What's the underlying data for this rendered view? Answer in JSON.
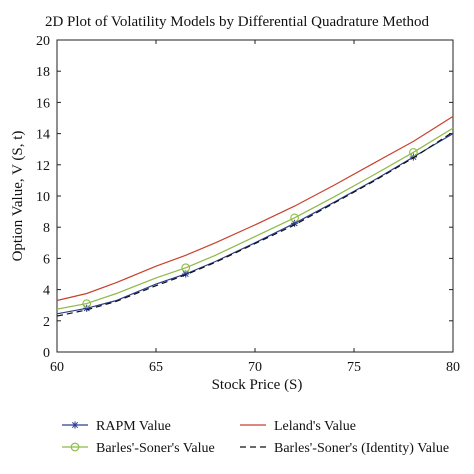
{
  "chart_data": {
    "type": "line",
    "title": "2D Plot of Volatility Models by Differential Quadrature Method",
    "xlabel": "Stock Price (S)",
    "ylabel": "Option Value, V (S, t)",
    "xlim": [
      60,
      80
    ],
    "ylim": [
      0,
      20
    ],
    "xticks": [
      60,
      65,
      70,
      75,
      80
    ],
    "yticks": [
      0,
      2,
      4,
      6,
      8,
      10,
      12,
      14,
      16,
      18,
      20
    ],
    "grid": false,
    "legend_position": "bottom, outside plot, two columns",
    "series": [
      {
        "name": "RAPM Value",
        "color": "#2c3e8f",
        "style": "solid",
        "marker": "asterisk",
        "x": [
          60,
          61.5,
          63,
          65,
          66.5,
          68,
          70,
          72,
          74,
          76,
          78,
          80
        ],
        "y": [
          2.45,
          2.8,
          3.3,
          4.35,
          5.0,
          5.8,
          7.0,
          8.25,
          9.6,
          11.0,
          12.5,
          14.0
        ],
        "marker_x": [
          61.5,
          66.5,
          72,
          78
        ]
      },
      {
        "name": "Leland's Value",
        "color": "#c8412d",
        "style": "solid",
        "marker": "none",
        "x": [
          60,
          61.5,
          63,
          65,
          66.5,
          68,
          70,
          72,
          74,
          76,
          78,
          80
        ],
        "y": [
          3.3,
          3.75,
          4.45,
          5.5,
          6.2,
          7.0,
          8.15,
          9.35,
          10.7,
          12.1,
          13.5,
          15.1
        ]
      },
      {
        "name": "Barles'-Soner's Value",
        "color": "#8dba45",
        "style": "solid",
        "marker": "circle",
        "x": [
          60,
          61.5,
          63,
          65,
          66.5,
          68,
          70,
          72,
          74,
          76,
          78,
          80
        ],
        "y": [
          2.75,
          3.1,
          3.75,
          4.75,
          5.4,
          6.2,
          7.4,
          8.6,
          9.95,
          11.35,
          12.8,
          14.35
        ],
        "marker_x": [
          61.5,
          66.5,
          72,
          78
        ]
      },
      {
        "name": "Barles'-Soner's (Identity) Value",
        "color": "#111111",
        "style": "dashed",
        "marker": "none",
        "x": [
          60,
          61.5,
          63,
          65,
          66.5,
          68,
          70,
          72,
          74,
          76,
          78,
          80
        ],
        "y": [
          2.3,
          2.7,
          3.25,
          4.25,
          4.95,
          5.75,
          6.95,
          8.15,
          9.55,
          10.95,
          12.45,
          14.1
        ]
      }
    ]
  }
}
